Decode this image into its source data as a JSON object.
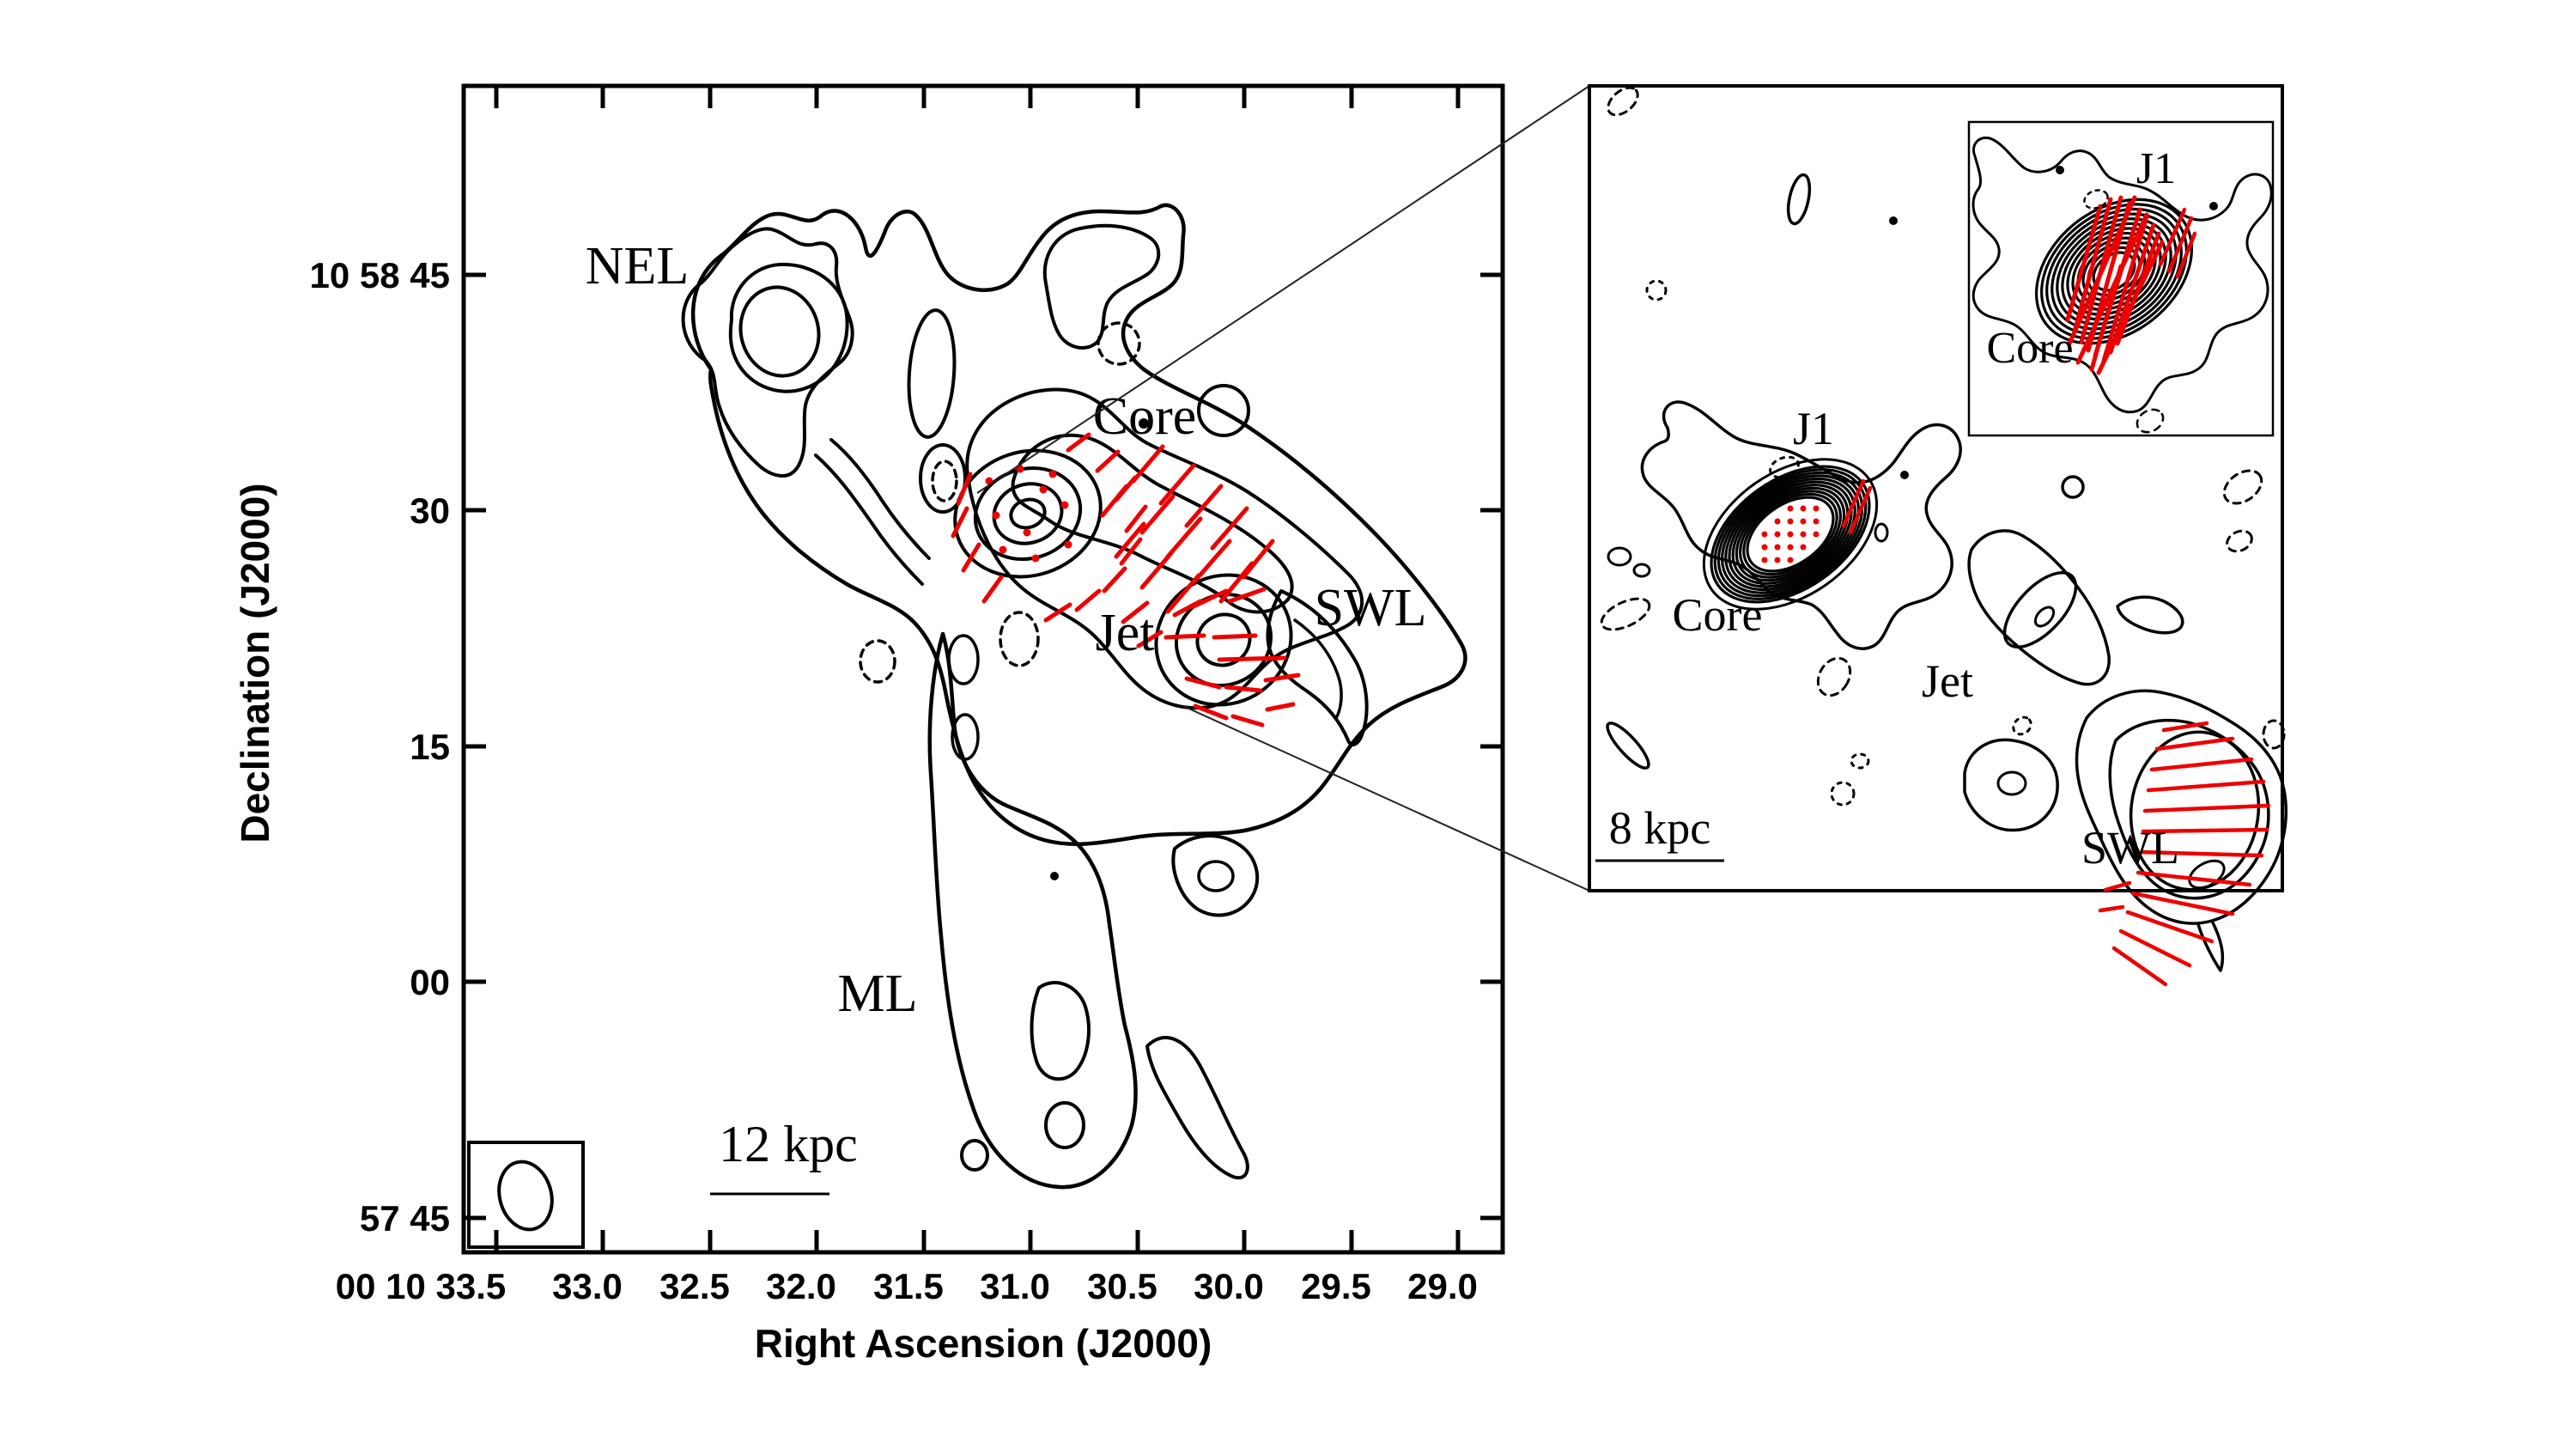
{
  "colors": {
    "background": "#ffffff",
    "contour": "#000000",
    "vector": "#ee0000",
    "callout_line": "#222222"
  },
  "main_plot": {
    "title_x": "Right Ascension (J2000)",
    "title_y": "Declination (J2000)",
    "x_tick_labels": [
      "00 10 33.5",
      "33.0",
      "32.5",
      "32.0",
      "31.5",
      "31.0",
      "30.5",
      "30.0",
      "29.5",
      "29.0"
    ],
    "y_tick_labels": [
      "10 58 45",
      "30",
      "15",
      "00",
      "57 45"
    ],
    "region_labels": {
      "nel": "NEL",
      "core": "Core",
      "jet": "Jet",
      "swl": "SWL",
      "ml": "ML"
    },
    "scale_bar_label": "12 kpc"
  },
  "zoom_panel": {
    "region_labels": {
      "j1": "J1",
      "core": "Core",
      "jet": "Jet",
      "swl": "SWL"
    },
    "scale_bar_label": "8 kpc"
  },
  "zoom_inset": {
    "region_labels": {
      "j1": "J1",
      "core": "Core"
    }
  }
}
